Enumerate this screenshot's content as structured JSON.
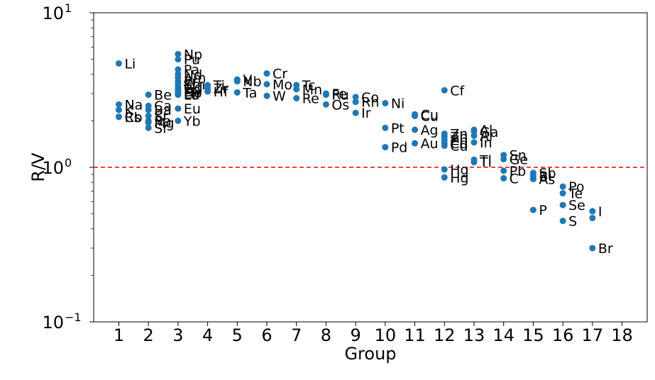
{
  "chart_data": {
    "type": "scatter",
    "title": "",
    "xlabel": "Group",
    "ylabel": "R/V",
    "xlim": [
      0.15,
      18.85
    ],
    "ylim": [
      0.1,
      10
    ],
    "yscale": "log",
    "x_ticks": [
      "1",
      "2",
      "3",
      "4",
      "5",
      "6",
      "7",
      "8",
      "9",
      "10",
      "11",
      "12",
      "13",
      "14",
      "15",
      "16",
      "17",
      "18"
    ],
    "y_ticks": [
      {
        "value": 0.1,
        "base": "10",
        "exp": "−1"
      },
      {
        "value": 1,
        "base": "10",
        "exp": "0"
      },
      {
        "value": 10,
        "base": "10",
        "exp": "1"
      }
    ],
    "reference_line": {
      "y": 1.0,
      "color": "#ff0000",
      "style": "dashed"
    },
    "marker_color": "#1f77b4",
    "points": [
      {
        "x": 1,
        "y": 4.7,
        "label": "Li"
      },
      {
        "x": 1,
        "y": 2.55,
        "label": "Na"
      },
      {
        "x": 1,
        "y": 2.35,
        "label": "K"
      },
      {
        "x": 1,
        "y": 2.12,
        "label": "Rb"
      },
      {
        "x": 1,
        "y": 2.12,
        "label": "Cs"
      },
      {
        "x": 2,
        "y": 2.95,
        "label": "Be"
      },
      {
        "x": 2,
        "y": 2.5,
        "label": "Ca"
      },
      {
        "x": 2,
        "y": 2.35,
        "label": "Ba"
      },
      {
        "x": 2,
        "y": 2.15,
        "label": "Sr"
      },
      {
        "x": 2,
        "y": 2.0,
        "label": "Ra"
      },
      {
        "x": 2,
        "y": 1.95,
        "label": "Mg"
      },
      {
        "x": 2,
        "y": 1.8,
        "label": "Sr"
      },
      {
        "x": 3,
        "y": 5.4,
        "label": "Np"
      },
      {
        "x": 3,
        "y": 5.0,
        "label": "Pu"
      },
      {
        "x": 3,
        "y": 4.3,
        "label": "Pa"
      },
      {
        "x": 3,
        "y": 4.0,
        "label": "Nd"
      },
      {
        "x": 3,
        "y": 3.8,
        "label": "Am"
      },
      {
        "x": 3,
        "y": 3.6,
        "label": "Pr"
      },
      {
        "x": 3,
        "y": 3.45,
        "label": "Sm"
      },
      {
        "x": 3,
        "y": 3.3,
        "label": "Gd"
      },
      {
        "x": 3,
        "y": 3.2,
        "label": "Tb"
      },
      {
        "x": 3,
        "y": 3.1,
        "label": "Dy"
      },
      {
        "x": 3,
        "y": 3.05,
        "label": "Ho"
      },
      {
        "x": 3,
        "y": 3.0,
        "label": "Er"
      },
      {
        "x": 3,
        "y": 2.95,
        "label": "Lu"
      },
      {
        "x": 3,
        "y": 2.4,
        "label": "Eu"
      },
      {
        "x": 3,
        "y": 2.0,
        "label": "Yb"
      },
      {
        "x": 4,
        "y": 3.4,
        "label": "Ti"
      },
      {
        "x": 4,
        "y": 3.25,
        "label": "Zr"
      },
      {
        "x": 4,
        "y": 3.1,
        "label": "Hf"
      },
      {
        "x": 5,
        "y": 3.7,
        "label": "V"
      },
      {
        "x": 5,
        "y": 3.6,
        "label": "Nb"
      },
      {
        "x": 5,
        "y": 3.05,
        "label": "Ta"
      },
      {
        "x": 6,
        "y": 4.05,
        "label": "Cr"
      },
      {
        "x": 6,
        "y": 3.45,
        "label": "Mo"
      },
      {
        "x": 6,
        "y": 2.9,
        "label": "W"
      },
      {
        "x": 7,
        "y": 3.4,
        "label": "Tc"
      },
      {
        "x": 7,
        "y": 3.2,
        "label": "Mn"
      },
      {
        "x": 7,
        "y": 2.8,
        "label": "Re"
      },
      {
        "x": 8,
        "y": 3.0,
        "label": "Fe"
      },
      {
        "x": 8,
        "y": 2.95,
        "label": "Ru"
      },
      {
        "x": 8,
        "y": 2.55,
        "label": "Os"
      },
      {
        "x": 9,
        "y": 2.85,
        "label": "Co"
      },
      {
        "x": 9,
        "y": 2.65,
        "label": "Rh"
      },
      {
        "x": 9,
        "y": 2.25,
        "label": "Ir"
      },
      {
        "x": 10,
        "y": 2.6,
        "label": "Ni"
      },
      {
        "x": 10,
        "y": 1.8,
        "label": "Pt"
      },
      {
        "x": 10,
        "y": 1.35,
        "label": "Pd"
      },
      {
        "x": 11,
        "y": 2.2,
        "label": "Cu"
      },
      {
        "x": 11,
        "y": 2.15,
        "label": "Cu"
      },
      {
        "x": 11,
        "y": 1.75,
        "label": "Ag"
      },
      {
        "x": 11,
        "y": 1.43,
        "label": "Au"
      },
      {
        "x": 12,
        "y": 3.15,
        "label": "Cf"
      },
      {
        "x": 12,
        "y": 1.65,
        "label": "Zn"
      },
      {
        "x": 12,
        "y": 1.58,
        "label": "Zn"
      },
      {
        "x": 12,
        "y": 1.5,
        "label": "Zn"
      },
      {
        "x": 12,
        "y": 1.43,
        "label": "Cd"
      },
      {
        "x": 12,
        "y": 1.38,
        "label": "Cd"
      },
      {
        "x": 12,
        "y": 0.97,
        "label": "Hg"
      },
      {
        "x": 12,
        "y": 0.86,
        "label": "Hg"
      },
      {
        "x": 13,
        "y": 1.75,
        "label": "Al"
      },
      {
        "x": 13,
        "y": 1.7,
        "label": "Ga"
      },
      {
        "x": 13,
        "y": 1.6,
        "label": "Al"
      },
      {
        "x": 13,
        "y": 1.45,
        "label": "In"
      },
      {
        "x": 13,
        "y": 1.12,
        "label": "Tl"
      },
      {
        "x": 13,
        "y": 1.08,
        "label": "Tl"
      },
      {
        "x": 14,
        "y": 1.2,
        "label": "Sn"
      },
      {
        "x": 14,
        "y": 1.13,
        "label": "Ge"
      },
      {
        "x": 14,
        "y": 0.95,
        "label": "Pb"
      },
      {
        "x": 14,
        "y": 0.85,
        "label": "C"
      },
      {
        "x": 15,
        "y": 0.92,
        "label": "Sb"
      },
      {
        "x": 15,
        "y": 0.88,
        "label": "Bi"
      },
      {
        "x": 15,
        "y": 0.84,
        "label": "As"
      },
      {
        "x": 15,
        "y": 0.53,
        "label": "P"
      },
      {
        "x": 16,
        "y": 0.75,
        "label": "Po"
      },
      {
        "x": 16,
        "y": 0.68,
        "label": "Te"
      },
      {
        "x": 16,
        "y": 0.57,
        "label": "Se"
      },
      {
        "x": 16,
        "y": 0.45,
        "label": "S"
      },
      {
        "x": 17,
        "y": 0.52,
        "label": "I"
      },
      {
        "x": 17,
        "y": 0.47,
        "label": ""
      },
      {
        "x": 17,
        "y": 0.3,
        "label": "Br"
      }
    ]
  }
}
